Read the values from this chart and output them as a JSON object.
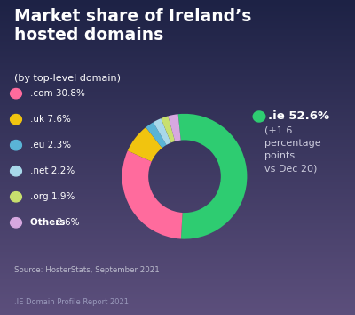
{
  "title": "Market share of Ireland’s\nhosted domains",
  "subtitle": "(by top-level domain)",
  "slices": [
    {
      "label": ".ie",
      "value": 52.6,
      "color": "#2ecc71"
    },
    {
      "label": ".com",
      "value": 30.8,
      "color": "#ff6b9d"
    },
    {
      "label": ".uk",
      "value": 7.6,
      "color": "#f1c40f"
    },
    {
      "label": ".eu",
      "value": 2.3,
      "color": "#5ab4d6"
    },
    {
      "label": ".net",
      "value": 2.2,
      "color": "#a8d8ea"
    },
    {
      "label": ".org",
      "value": 1.9,
      "color": "#c8e06e"
    },
    {
      "label": "Others",
      "value": 2.6,
      "color": "#d7a8e0"
    }
  ],
  "ie_label_bold": ".ie 52.6%",
  "ie_label_rest": "(+1.6\npercentage\npoints\nvs Dec 20)",
  "legend_items": [
    {
      "label": ".com",
      "pct": "30.8%",
      "color": "#ff6b9d",
      "bold_label": false
    },
    {
      "label": ".uk",
      "pct": "7.6%",
      "color": "#f1c40f",
      "bold_label": false
    },
    {
      "label": ".eu",
      "pct": "2.3%",
      "color": "#5ab4d6",
      "bold_label": false
    },
    {
      "label": ".net",
      "pct": "2.2%",
      "color": "#a8d8ea",
      "bold_label": false
    },
    {
      "label": ".org",
      "pct": "1.9%",
      "color": "#c8e06e",
      "bold_label": false
    },
    {
      "label": "Others",
      "pct": "2.6%",
      "color": "#d7a8e0",
      "bold_label": true
    }
  ],
  "source_text": "Source: HosterStats, September 2021",
  "footer_text": ".IE Domain Profile Report 2021",
  "bg_top": "#1d2245",
  "bg_bottom": "#5c4f7c",
  "text_color": "#ffffff",
  "source_color": "#bbbbcc",
  "footer_color": "#9999bb",
  "startangle": 96,
  "donut_width": 0.42
}
